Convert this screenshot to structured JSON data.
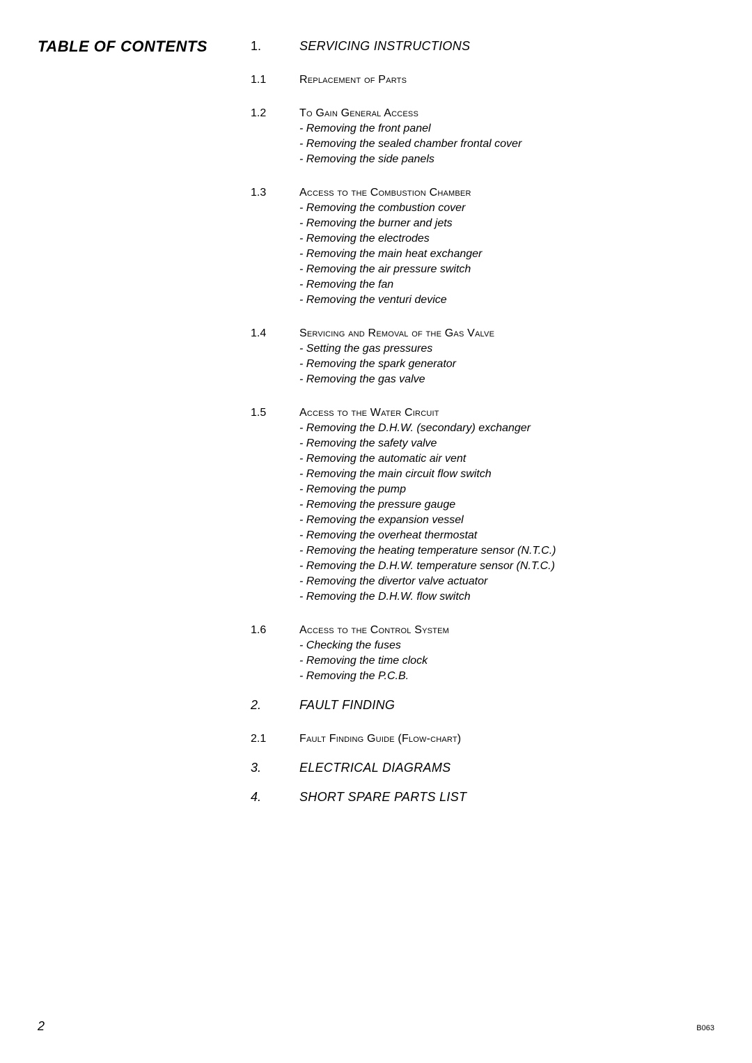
{
  "colors": {
    "background": "#ffffff",
    "text": "#000000"
  },
  "typography": {
    "body_font_size_pt": 12,
    "chapter_font_size_pt": 14,
    "title_font_size_pt": 17
  },
  "toc_heading": "TABLE OF  CONTENTS",
  "page_number": "2",
  "doc_code": "B063",
  "chapters": [
    {
      "num": "1.",
      "title": "SERVICING INSTRUCTIONS",
      "sections": [
        {
          "num": "1.1",
          "title": "Replacement of Parts",
          "items": []
        },
        {
          "num": "1.2",
          "title": "To Gain General Access",
          "items": [
            "- Removing the front panel",
            "- Removing the sealed chamber frontal cover",
            "- Removing the side panels"
          ]
        },
        {
          "num": "1.3",
          "title": "Access to the Combustion Chamber",
          "items": [
            "- Removing the combustion cover",
            "- Removing the burner and jets",
            "- Removing the electrodes",
            "- Removing the main heat exchanger",
            "- Removing the air pressure switch",
            "- Removing the fan",
            "- Removing the venturi device"
          ]
        },
        {
          "num": "1.4",
          "title": "Servicing and Removal of the Gas Valve",
          "items": [
            "- Setting the gas pressures",
            "- Removing the spark generator",
            "- Removing the gas valve"
          ]
        },
        {
          "num": "1.5",
          "title": "Access to the Water Circuit",
          "items": [
            "- Removing the D.H.W. (secondary) exchanger",
            "- Removing the safety valve",
            "- Removing the automatic air vent",
            "- Removing the main circuit flow switch",
            "- Removing the pump",
            "- Removing  the pressure gauge",
            "- Removing the expansion vessel",
            "- Removing the overheat thermostat",
            "- Removing the heating temperature sensor (N.T.C.)",
            "- Removing the D.H.W. temperature sensor (N.T.C.)",
            "- Removing the divertor valve actuator",
            "- Removing the D.H.W. flow switch"
          ]
        },
        {
          "num": "1.6",
          "title": "Access to the Control System",
          "items": [
            "- Checking the fuses",
            "- Removing the time clock",
            "- Removing the P.C.B."
          ]
        }
      ]
    },
    {
      "num": "2.",
      "title": "FAULT FINDING",
      "sections": [
        {
          "num": "2.1",
          "title": "Fault Finding Guide (Flow-chart)",
          "items": []
        }
      ]
    },
    {
      "num": "3.",
      "title": "ELECTRICAL DIAGRAMS",
      "sections": []
    },
    {
      "num": "4.",
      "title": "SHORT SPARE PARTS LIST",
      "sections": []
    }
  ]
}
